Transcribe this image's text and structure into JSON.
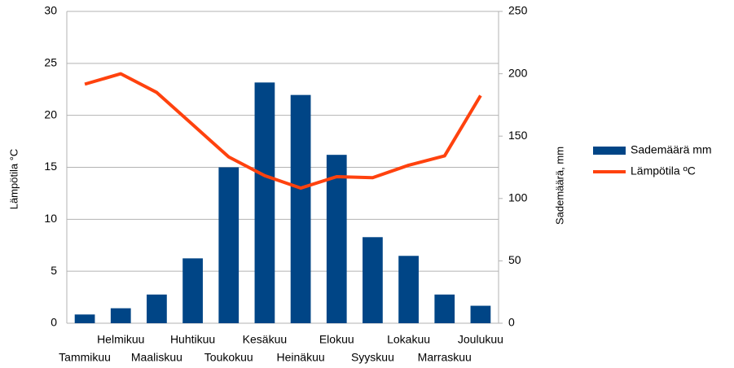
{
  "chart_data": {
    "type": "bar_line",
    "categories": [
      "Tammikuu",
      "Helmikuu",
      "Maaliskuu",
      "Huhtikuu",
      "Toukokuu",
      "Kesäkuu",
      "Heinäkuu",
      "Elokuu",
      "Syyskuu",
      "Lokakuu",
      "Marraskuu",
      "Joulukuu"
    ],
    "series": [
      {
        "name": "Sademäärä mm",
        "type": "bar",
        "axis": "y2",
        "color": "#004586",
        "values": [
          7,
          12,
          23,
          52,
          125,
          193,
          183,
          135,
          69,
          54,
          23,
          14
        ]
      },
      {
        "name": "Lämpötila ºC",
        "type": "line",
        "axis": "y",
        "color": "#ff420e",
        "values": [
          23.0,
          24.0,
          22.2,
          19.1,
          16.0,
          14.2,
          13.0,
          14.1,
          14.0,
          15.2,
          16.1,
          21.9
        ]
      }
    ],
    "y_label": "Lämpötila °C",
    "y2_label": "Sademäärä, mm",
    "ylim": [
      0,
      30
    ],
    "yticks": [
      0,
      5,
      10,
      15,
      20,
      25,
      30
    ],
    "y2lim": [
      0,
      250
    ],
    "y2ticks": [
      0,
      50,
      100,
      150,
      200,
      250
    ],
    "grid": true,
    "legend": "right"
  }
}
